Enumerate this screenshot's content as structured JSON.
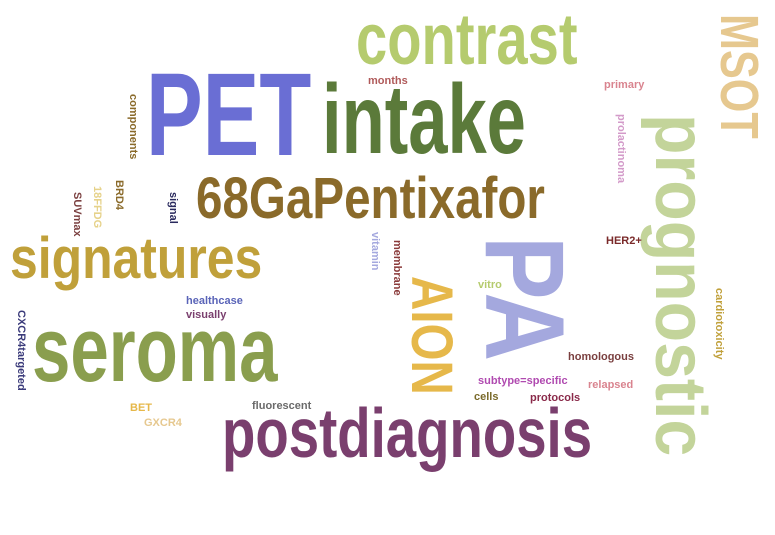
{
  "words": [
    {
      "key": "contrast",
      "text": "contrast",
      "color": "#b5cb6e"
    },
    {
      "key": "MSOT",
      "text": "MSOT",
      "color": "#e6c88f"
    },
    {
      "key": "PET",
      "text": "PET",
      "color": "#6a6ed4"
    },
    {
      "key": "intake",
      "text": "intake",
      "color": "#5b7a3a"
    },
    {
      "key": "prognostic",
      "text": "prognostic",
      "color": "#c3d49a"
    },
    {
      "key": "68GaPentixafor",
      "text": "68GaPentixafor",
      "color": "#8a6a2a"
    },
    {
      "key": "signatures",
      "text": "signatures",
      "color": "#c0a03a"
    },
    {
      "key": "PA",
      "text": "PA",
      "color": "#a4a8de"
    },
    {
      "key": "AION",
      "text": "AION",
      "color": "#e6b84a"
    },
    {
      "key": "seroma",
      "text": "seroma",
      "color": "#8a9e4e"
    },
    {
      "key": "postdiagnosis",
      "text": "postdiagnosis",
      "color": "#7a3f6e"
    },
    {
      "key": "months",
      "text": "months",
      "color": "#b05a5a"
    },
    {
      "key": "primary",
      "text": "primary",
      "color": "#d9848f"
    },
    {
      "key": "components",
      "text": "components",
      "color": "#8a6a2a"
    },
    {
      "key": "prolactinoma",
      "text": "prolactinoma",
      "color": "#d39ac9"
    },
    {
      "key": "SUVmax",
      "text": "SUVmax",
      "color": "#7a3f3f"
    },
    {
      "key": "18FFDG",
      "text": "18FFDG",
      "color": "#e6d28a"
    },
    {
      "key": "BRD4",
      "text": "BRD4",
      "color": "#8a6a2a"
    },
    {
      "key": "signal",
      "text": "signal",
      "color": "#2a2a5e"
    },
    {
      "key": "vitamin",
      "text": "vitamin",
      "color": "#a4a8de"
    },
    {
      "key": "membrane",
      "text": "membrane",
      "color": "#8a3a3a"
    },
    {
      "key": "HER2plus",
      "text": "HER2+",
      "color": "#7a2a2a"
    },
    {
      "key": "vitro",
      "text": "vitro",
      "color": "#b5cb6e"
    },
    {
      "key": "healthcase",
      "text": "healthcase",
      "color": "#5a64b8"
    },
    {
      "key": "visually",
      "text": "visually",
      "color": "#7a3f6e"
    },
    {
      "key": "CXCR4targeted",
      "text": "CXCR4targeted",
      "color": "#3a3a7a"
    },
    {
      "key": "cardiotoxicity",
      "text": "cardiotoxicity",
      "color": "#c0a03a"
    },
    {
      "key": "homologous",
      "text": "homologous",
      "color": "#7a3f3f"
    },
    {
      "key": "subtype",
      "text": "subtype=specific",
      "color": "#b04ab0"
    },
    {
      "key": "relapsed",
      "text": "relapsed",
      "color": "#d9848f"
    },
    {
      "key": "cells",
      "text": "cells",
      "color": "#7a6a2a"
    },
    {
      "key": "protocols",
      "text": "protocols",
      "color": "#8a2a4a"
    },
    {
      "key": "fluorescent",
      "text": "fluorescent",
      "color": "#6a6a6a"
    },
    {
      "key": "BET",
      "text": "BET",
      "color": "#e6b84a"
    },
    {
      "key": "GXCR4",
      "text": "GXCR4",
      "color": "#e6c88f"
    }
  ]
}
